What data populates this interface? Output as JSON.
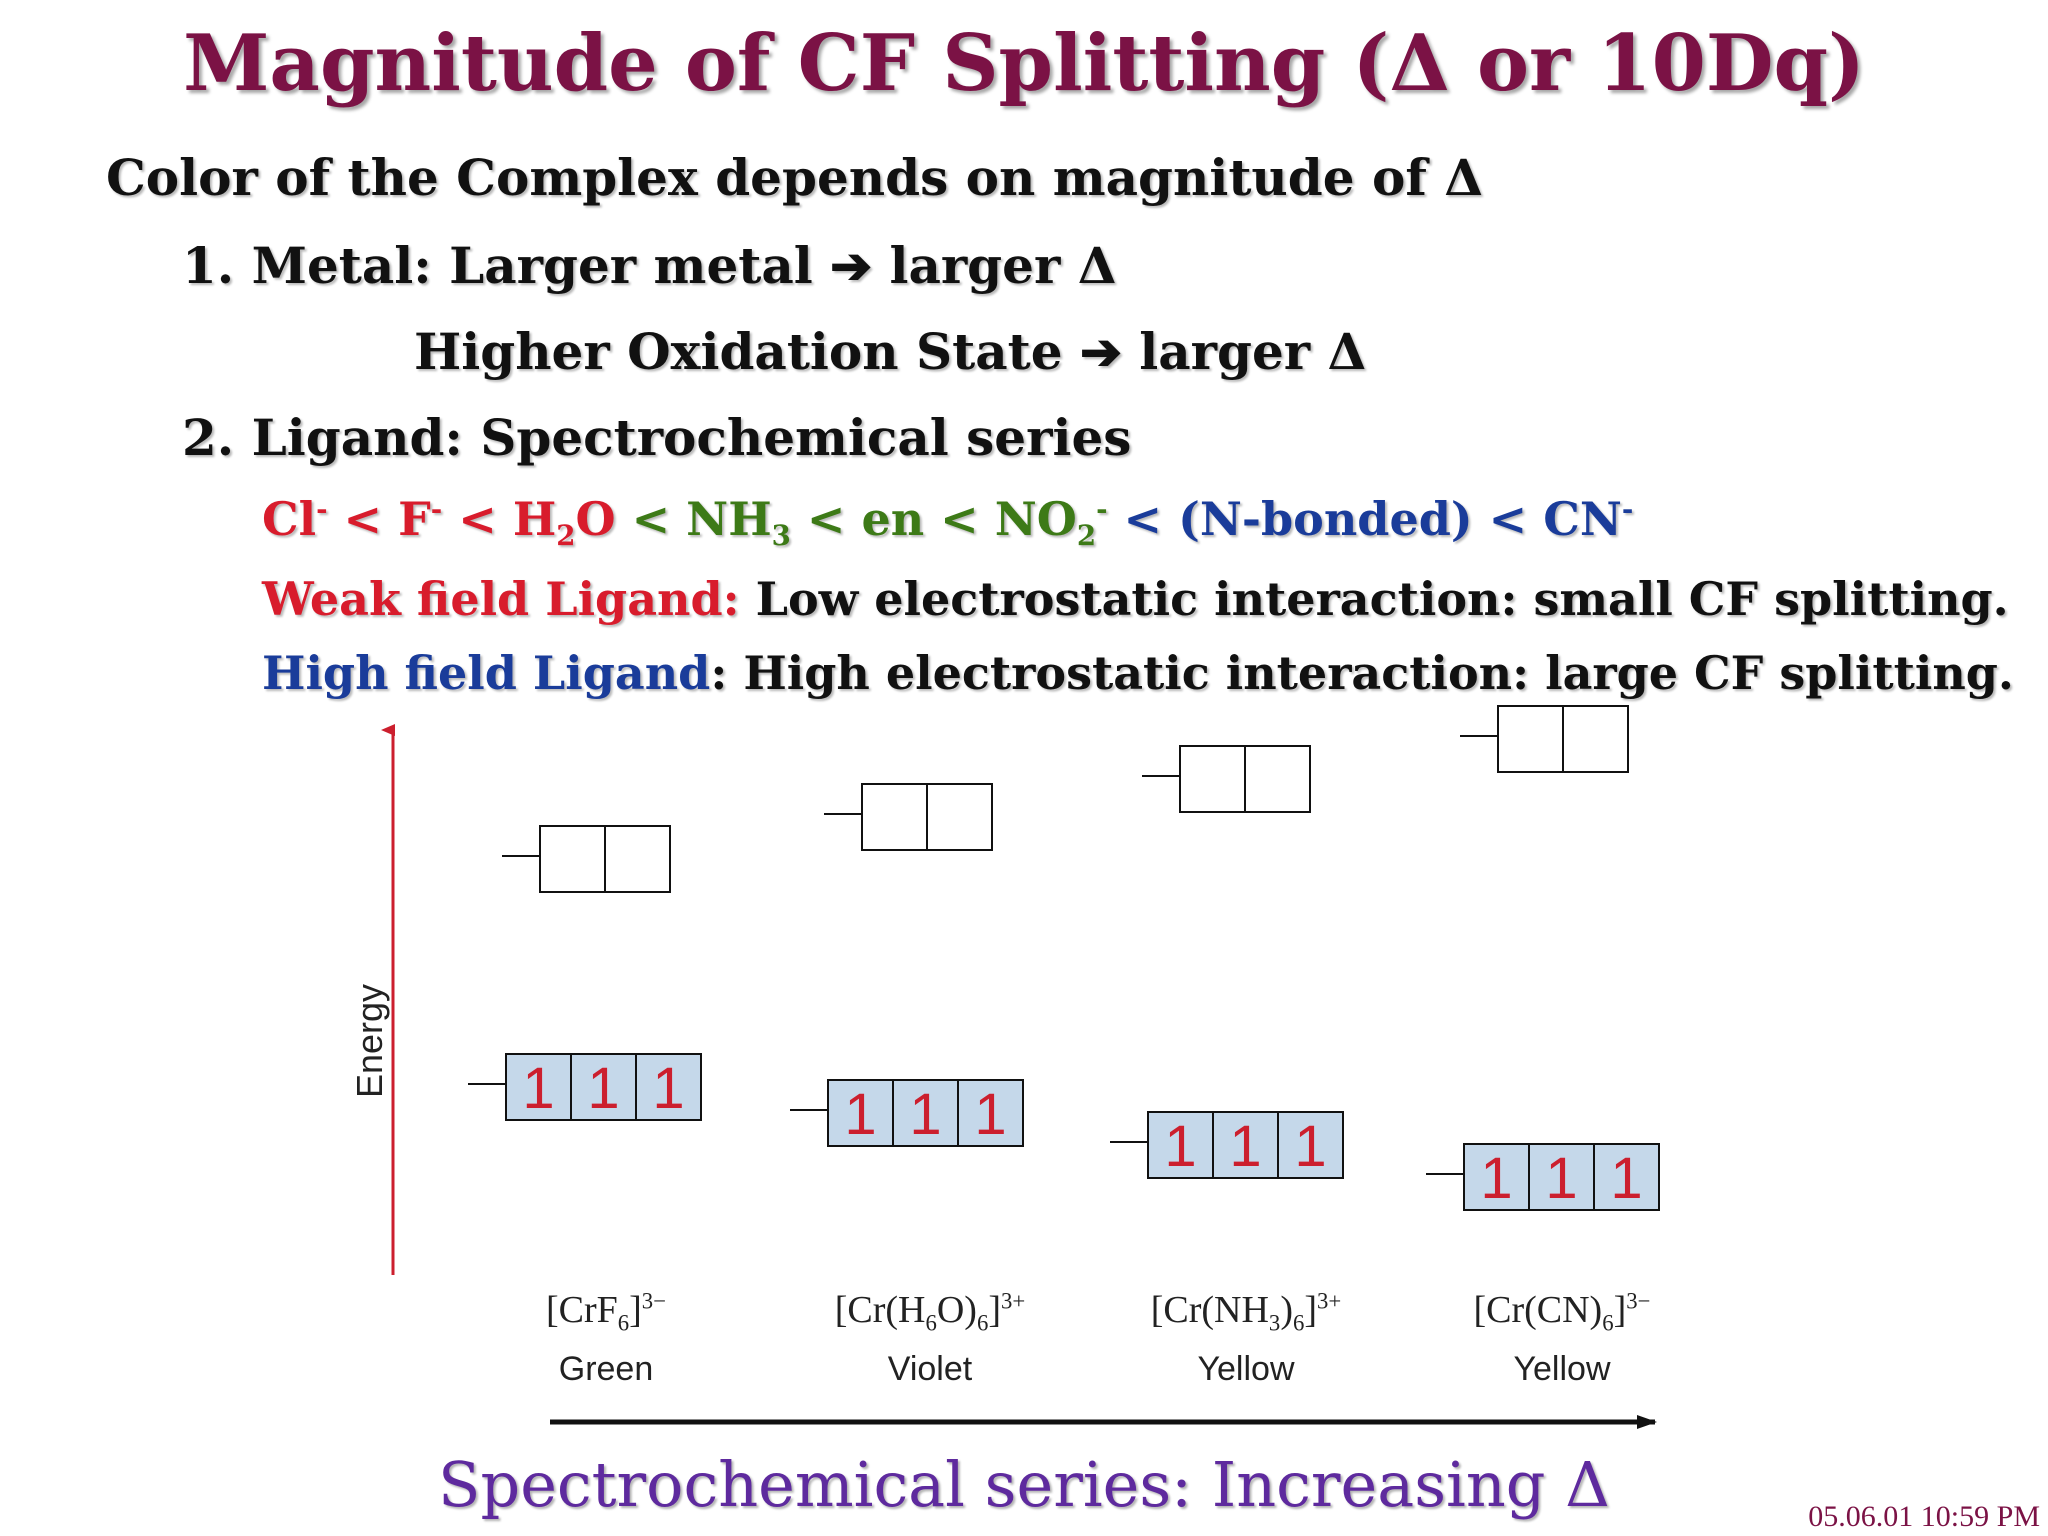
{
  "title": "Magnitude of CF Splitting (Δ or 10Dq)",
  "intro": "Color of the Complex depends on magnitude of Δ",
  "point1": "1. Metal:  Larger metal ➔ larger Δ",
  "point1b": "Higher Oxidation State ➔ larger Δ",
  "point2": "2. Ligand: Spectrochemical series",
  "series": {
    "cl": "Cl",
    "cl_sup": "-",
    "lt1": " < ",
    "f": "F",
    "f_sup": "-",
    "lt2": " < ",
    "h2o_a": "H",
    "h2o_sub": "2",
    "h2o_b": "O",
    "lt3": " < ",
    "nh3_a": "NH",
    "nh3_sub": "3",
    "lt4": " < en < ",
    "no2_a": "NO",
    "no2_sub": "2",
    "no2_sup": "-",
    "rest": " < (N-bonded) < CN",
    "cn_sup": "-"
  },
  "weak": {
    "label": "Weak field Ligand:",
    "text": " Low electrostatic interaction: small CF splitting."
  },
  "high": {
    "label": "High field Ligand",
    "text": ": High electrostatic interaction: large CF splitting."
  },
  "diagram": {
    "axis_label": "Energy",
    "electron_mark": "1",
    "complexes": [
      {
        "formula_main": "[CrF",
        "formula_sub1": "6",
        "formula_mid": "",
        "formula_sub2": "",
        "formula_end": "]",
        "charge": "3−",
        "color": "Green"
      },
      {
        "formula_main": "[Cr(H",
        "formula_sub1": "6",
        "formula_mid": "O)",
        "formula_sub2": "6",
        "formula_end": "]",
        "charge": "3+",
        "color": "Violet"
      },
      {
        "formula_main": "[Cr(NH",
        "formula_sub1": "3",
        "formula_mid": ")",
        "formula_sub2": "6",
        "formula_end": "]",
        "charge": "3+",
        "color": "Yellow"
      },
      {
        "formula_main": "[Cr(CN)",
        "formula_sub1": "6",
        "formula_mid": "",
        "formula_sub2": "",
        "formula_end": "]",
        "charge": "3−",
        "color": "Yellow"
      }
    ]
  },
  "bottom_caption": "Spectrochemical series:  Increasing Δ",
  "timestamp": "05.06.01 10:59 PM",
  "colors": {
    "title": "#7b1245",
    "weak": "#d81c2c",
    "green": "#3d7a17",
    "high": "#1a3c9a",
    "caption": "#5e2a9e",
    "box_fill": "#c5d8ea",
    "arrow_red": "#cc1f2e"
  }
}
